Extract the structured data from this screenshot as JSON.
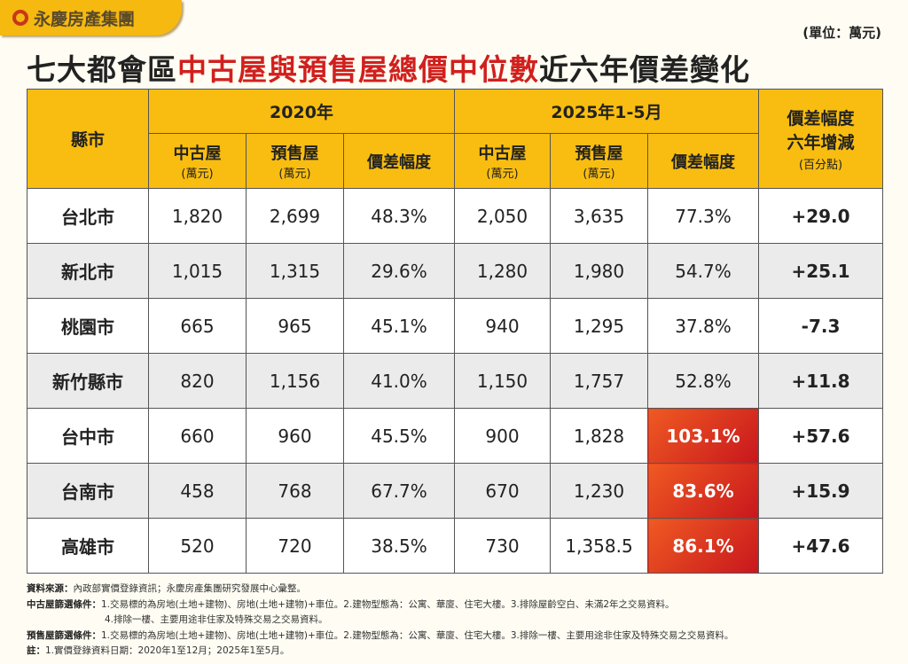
{
  "brand": "永慶房產集團",
  "unit": "(單位：萬元)",
  "title": {
    "part1": "七大都會區",
    "highlight": "中古屋與預售屋總價中位數",
    "part2": "近六年價差變化"
  },
  "chart_data": {
    "type": "table",
    "headers": {
      "county": "縣市",
      "year1": "2020年",
      "year2": "2025年1-5月",
      "change": "價差幅度",
      "change2": "六年增減",
      "change_unit": "(百分點)",
      "used": "中古屋",
      "presale": "預售屋",
      "gap": "價差幅度",
      "wan": "(萬元)"
    },
    "rows": [
      {
        "city": "台北市",
        "used_2020": "1,820",
        "presale_2020": "2,699",
        "gap_2020": "48.3%",
        "used_2025": "2,050",
        "presale_2025": "3,635",
        "gap_2025": "77.3%",
        "change": "+29.0",
        "highlight": false
      },
      {
        "city": "新北市",
        "used_2020": "1,015",
        "presale_2020": "1,315",
        "gap_2020": "29.6%",
        "used_2025": "1,280",
        "presale_2025": "1,980",
        "gap_2025": "54.7%",
        "change": "+25.1",
        "highlight": false
      },
      {
        "city": "桃園市",
        "used_2020": "665",
        "presale_2020": "965",
        "gap_2020": "45.1%",
        "used_2025": "940",
        "presale_2025": "1,295",
        "gap_2025": "37.8%",
        "change": "-7.3",
        "highlight": false
      },
      {
        "city": "新竹縣市",
        "used_2020": "820",
        "presale_2020": "1,156",
        "gap_2020": "41.0%",
        "used_2025": "1,150",
        "presale_2025": "1,757",
        "gap_2025": "52.8%",
        "change": "+11.8",
        "highlight": false
      },
      {
        "city": "台中市",
        "used_2020": "660",
        "presale_2020": "960",
        "gap_2020": "45.5%",
        "used_2025": "900",
        "presale_2025": "1,828",
        "gap_2025": "103.1%",
        "change": "+57.6",
        "highlight": true
      },
      {
        "city": "台南市",
        "used_2020": "458",
        "presale_2020": "768",
        "gap_2020": "67.7%",
        "used_2025": "670",
        "presale_2025": "1,230",
        "gap_2025": "83.6%",
        "change": "+15.9",
        "highlight": true
      },
      {
        "city": "高雄市",
        "used_2020": "520",
        "presale_2020": "720",
        "gap_2020": "38.5%",
        "used_2025": "730",
        "presale_2025": "1,358.5",
        "gap_2025": "86.1%",
        "change": "+47.6",
        "highlight": true
      }
    ]
  },
  "notes": {
    "source_label": "資料來源：",
    "source": "內政部實價登錄資訊；永慶房產集團研究發展中心彙整。",
    "used_label": "中古屋篩選條件：",
    "used1": "1.交易標的為房地(土地+建物)、房地(土地+建物)+車位。2.建物型態為：公寓、華廈、住宅大樓。3.排除屋齡空白、未滿2年之交易資料。",
    "used2": "4.排除一樓、主要用途非住家及特殊交易之交易資料。",
    "presale_label": "預售屋篩選條件：",
    "presale": "1.交易標的為房地(土地+建物)、房地(土地+建物)+車位。2.建物型態為：公寓、華廈、住宅大樓。3.排除一樓、主要用途非住家及特殊交易之交易資料。",
    "note_label": "註：",
    "note": "1.實價登錄資料日期：2020年1至12月；2025年1至5月。"
  }
}
